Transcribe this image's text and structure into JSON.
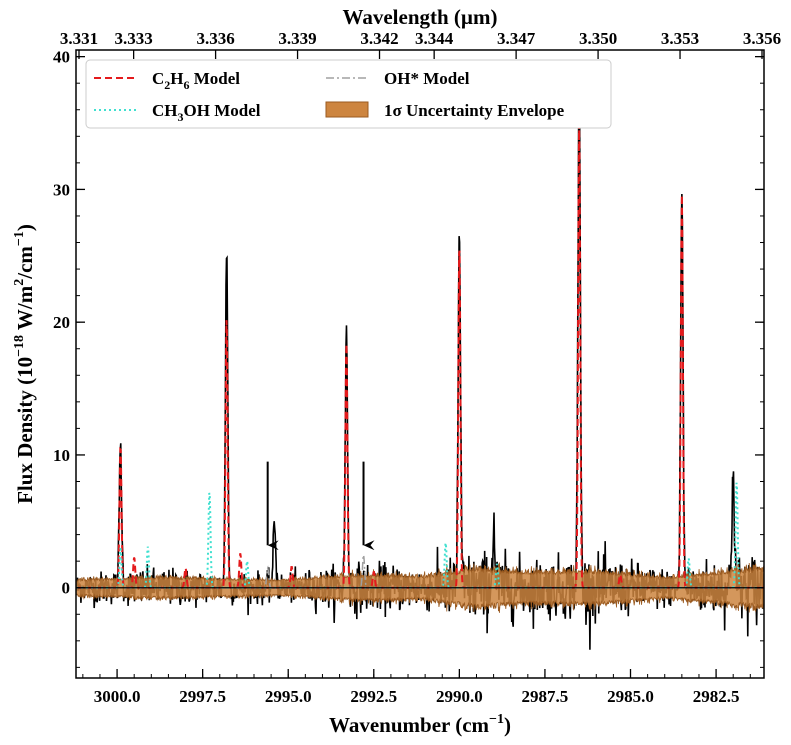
{
  "chart_data": {
    "type": "line",
    "xlabel": "Wavenumber (cm",
    "xlabel_sup": "−1",
    "xlabel_end": ")",
    "top_xlabel": "Wavelength (µm)",
    "ylabel": "Flux Density (10",
    "ylabel_sup1": "−18",
    "ylabel_mid": " W/m",
    "ylabel_sup2": "2",
    "ylabel_mid2": "/cm",
    "ylabel_sup3": "−1",
    "ylabel_end": ")",
    "x_range": [
      3001.2,
      2981.1
    ],
    "x_inverted": true,
    "ylim": [
      -6.8,
      40.5
    ],
    "x_ticks": [
      3000.0,
      2997.5,
      2995.0,
      2992.5,
      2990.0,
      2987.5,
      2985.0,
      2982.5
    ],
    "x_tick_labels": [
      "3000.0",
      "2997.5",
      "2995.0",
      "2992.5",
      "2990.0",
      "2987.5",
      "2985.0",
      "2982.5"
    ],
    "y_ticks": [
      0,
      10,
      20,
      30,
      40
    ],
    "y_tick_labels": [
      "0",
      "10",
      "20",
      "30",
      "40"
    ],
    "top_ticks": [
      3.331,
      3.333,
      3.336,
      3.339,
      3.342,
      3.344,
      3.347,
      3.35,
      3.353,
      3.356
    ],
    "top_tick_labels": [
      "3.331",
      "3.333",
      "3.336",
      "3.339",
      "3.342",
      "3.344",
      "3.347",
      "3.350",
      "3.353",
      "3.356"
    ],
    "legend": [
      {
        "label_main": "C",
        "sub1": "2",
        "mid": "H",
        "sub2": "6",
        "tail": " Model",
        "style": "dashed",
        "color": "#e41a1c"
      },
      {
        "label_main": "CH",
        "sub1": "3",
        "mid": "OH Model",
        "sub2": "",
        "tail": "",
        "style": "dotted",
        "color": "#40e0d0"
      },
      {
        "label_main": "OH* Model",
        "sub1": "",
        "mid": "",
        "sub2": "",
        "tail": "",
        "style": "dashdot",
        "color": "#a0a0a0"
      },
      {
        "label_main": "1σ Uncertainty Envelope",
        "sub1": "",
        "mid": "",
        "sub2": "",
        "tail": "",
        "style": "patch",
        "color": "#cd8540"
      }
    ],
    "legend_placement": "upper-left, two columns",
    "series": [
      {
        "name": "Observed spectrum",
        "color": "#000000",
        "baseline": 0,
        "noise_sigma": 0.9,
        "peaks": [
          {
            "x": 2999.9,
            "y": 10.7
          },
          {
            "x": 2996.8,
            "y": 25.4
          },
          {
            "x": 2993.3,
            "y": 19.0
          },
          {
            "x": 2990.0,
            "y": 26.6
          },
          {
            "x": 2986.5,
            "y": 38.2
          },
          {
            "x": 2983.5,
            "y": 29.8
          },
          {
            "x": 2982.0,
            "y": 9.5
          },
          {
            "x": 2995.4,
            "y": 5.0
          },
          {
            "x": 2989.0,
            "y": 4.5
          }
        ]
      },
      {
        "name": "C2H6 Model",
        "color": "#e41a1c",
        "style": "dashed",
        "peaks": [
          {
            "x": 2999.9,
            "y": 10.7
          },
          {
            "x": 2996.8,
            "y": 20.3
          },
          {
            "x": 2993.3,
            "y": 18.4
          },
          {
            "x": 2990.0,
            "y": 26.0
          },
          {
            "x": 2986.5,
            "y": 35.0
          },
          {
            "x": 2983.5,
            "y": 29.6
          },
          {
            "x": 2999.5,
            "y": 2.3
          },
          {
            "x": 2998.0,
            "y": 1.5
          },
          {
            "x": 2996.4,
            "y": 2.6
          },
          {
            "x": 2994.9,
            "y": 1.6
          },
          {
            "x": 2992.5,
            "y": 1.2
          },
          {
            "x": 2985.3,
            "y": 1.0
          }
        ]
      },
      {
        "name": "CH3OH Model",
        "color": "#40e0d0",
        "style": "dotted",
        "peaks": [
          {
            "x": 2999.9,
            "y": 3.0
          },
          {
            "x": 2999.1,
            "y": 3.1
          },
          {
            "x": 2997.3,
            "y": 7.3
          },
          {
            "x": 2996.2,
            "y": 2.0
          },
          {
            "x": 2990.4,
            "y": 3.4
          },
          {
            "x": 2988.9,
            "y": 1.8
          },
          {
            "x": 2983.3,
            "y": 2.2
          },
          {
            "x": 2981.9,
            "y": 8.0
          }
        ]
      },
      {
        "name": "OH* Model",
        "color": "#a0a0a0",
        "style": "dashdot",
        "peaks": [
          {
            "x": 2995.6,
            "y": 1.5
          },
          {
            "x": 2992.8,
            "y": 2.5
          }
        ]
      }
    ],
    "uncertainty_envelope": {
      "color": "#cd8540",
      "points": [
        {
          "x": 3001.2,
          "sigma": 0.6
        },
        {
          "x": 2999.0,
          "sigma": 0.8
        },
        {
          "x": 2997.0,
          "sigma": 0.7
        },
        {
          "x": 2995.0,
          "sigma": 0.6
        },
        {
          "x": 2993.0,
          "sigma": 1.0
        },
        {
          "x": 2991.0,
          "sigma": 0.9
        },
        {
          "x": 2989.5,
          "sigma": 1.5
        },
        {
          "x": 2988.0,
          "sigma": 1.2
        },
        {
          "x": 2986.0,
          "sigma": 1.3
        },
        {
          "x": 2984.0,
          "sigma": 0.8
        },
        {
          "x": 2982.5,
          "sigma": 1.2
        },
        {
          "x": 2981.1,
          "sigma": 1.5
        }
      ]
    },
    "annotations": [
      {
        "type": "arrow",
        "x": 2995.6,
        "y_start": 9.5,
        "y_end": 3.2
      },
      {
        "type": "arrow",
        "x": 2992.8,
        "y_start": 9.5,
        "y_end": 3.2
      }
    ]
  }
}
